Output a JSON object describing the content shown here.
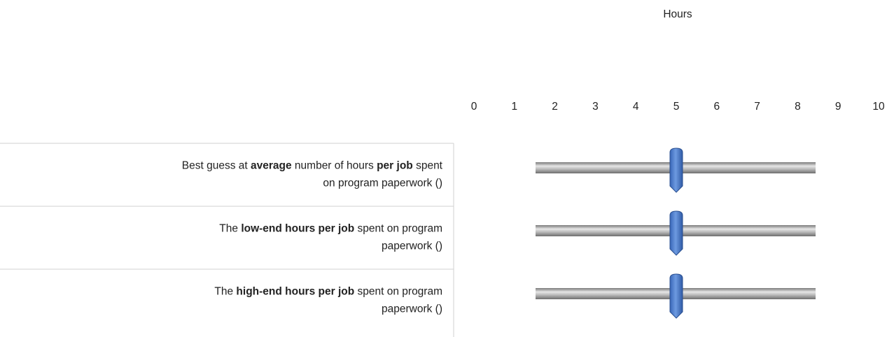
{
  "scale": {
    "title": "Hours",
    "ticks": [
      0,
      1,
      2,
      3,
      4,
      5,
      6,
      7,
      8,
      9,
      10
    ]
  },
  "rows": [
    {
      "lines": [
        [
          {
            "text": "Best guess at ",
            "bold": false
          },
          {
            "text": "average",
            "bold": true
          },
          {
            "text": " number of hours ",
            "bold": false
          },
          {
            "text": "per job",
            "bold": true
          },
          {
            "text": " spent",
            "bold": false
          }
        ],
        [
          {
            "text": "on program paperwork ()",
            "bold": false
          }
        ]
      ],
      "value": 5
    },
    {
      "lines": [
        [
          {
            "text": "The ",
            "bold": false
          },
          {
            "text": "low-end hours per job",
            "bold": true
          },
          {
            "text": " spent on program",
            "bold": false
          }
        ],
        [
          {
            "text": "paperwork ()",
            "bold": false
          }
        ]
      ],
      "value": 5
    },
    {
      "lines": [
        [
          {
            "text": "The ",
            "bold": false
          },
          {
            "text": "high-end hours per job",
            "bold": true
          },
          {
            "text": " spent on program",
            "bold": false
          }
        ],
        [
          {
            "text": "paperwork ()",
            "bold": false
          }
        ]
      ],
      "value": 5
    }
  ]
}
